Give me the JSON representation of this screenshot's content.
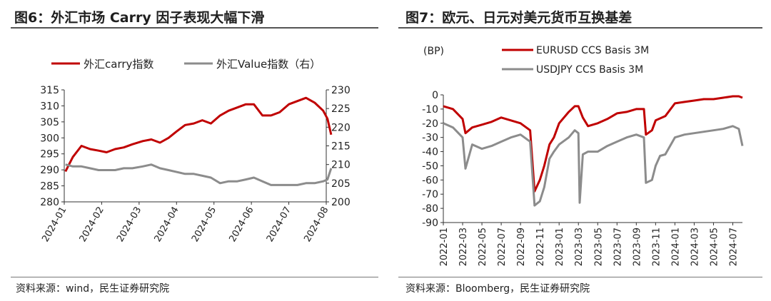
{
  "panels": [
    {
      "title": "图6：外汇市场 Carry 因子表现大幅下滑",
      "source": "资料来源：wind，民生证券研究院"
    },
    {
      "title": "图7：欧元、日元对美元货币互换基差",
      "source": "资料来源：Bloomberg，民生证券研究院"
    }
  ],
  "chart_data": [
    {
      "type": "line",
      "title": "图6：外汇市场 Carry 因子表现大幅下滑",
      "x_ticks": [
        "2024-01",
        "2024-02",
        "2024-03",
        "2024-04",
        "2024-05",
        "2024-06",
        "2024-07",
        "2024-08"
      ],
      "y_left": {
        "ylim": [
          280,
          315
        ],
        "ticks": [
          280,
          285,
          290,
          295,
          300,
          305,
          310,
          315
        ]
      },
      "y_right": {
        "ylim": [
          200,
          230
        ],
        "ticks": [
          200,
          205,
          210,
          215,
          220,
          225,
          230
        ]
      },
      "legend_position": "top",
      "grid": false,
      "series": [
        {
          "name": "外汇carry指数",
          "axis": "left",
          "color": "#c00000",
          "x": [
            "2024-01-02",
            "2024-01-08",
            "2024-01-15",
            "2024-01-22",
            "2024-01-29",
            "2024-02-05",
            "2024-02-12",
            "2024-02-19",
            "2024-02-26",
            "2024-03-04",
            "2024-03-11",
            "2024-03-18",
            "2024-03-25",
            "2024-04-01",
            "2024-04-08",
            "2024-04-15",
            "2024-04-22",
            "2024-04-29",
            "2024-05-06",
            "2024-05-13",
            "2024-05-20",
            "2024-05-27",
            "2024-06-03",
            "2024-06-10",
            "2024-06-17",
            "2024-06-24",
            "2024-07-01",
            "2024-07-08",
            "2024-07-15",
            "2024-07-22",
            "2024-07-29",
            "2024-08-02",
            "2024-08-05"
          ],
          "y": [
            289.5,
            294,
            297.5,
            296.5,
            296,
            295.5,
            296.5,
            297,
            298,
            299,
            299.5,
            298.5,
            300,
            302,
            304,
            304.5,
            305.5,
            304.5,
            307,
            308.5,
            309.5,
            310.5,
            310.5,
            307,
            307,
            308,
            310.5,
            311.5,
            312.5,
            311,
            308.5,
            306,
            301
          ]
        },
        {
          "name": "外汇Value指数（右）",
          "axis": "right",
          "color": "#8c8c8c",
          "x": [
            "2024-01-02",
            "2024-01-08",
            "2024-01-15",
            "2024-01-22",
            "2024-01-29",
            "2024-02-05",
            "2024-02-12",
            "2024-02-19",
            "2024-02-26",
            "2024-03-04",
            "2024-03-11",
            "2024-03-18",
            "2024-03-25",
            "2024-04-01",
            "2024-04-08",
            "2024-04-15",
            "2024-04-22",
            "2024-04-29",
            "2024-05-06",
            "2024-05-13",
            "2024-05-20",
            "2024-05-27",
            "2024-06-03",
            "2024-06-10",
            "2024-06-17",
            "2024-06-24",
            "2024-07-01",
            "2024-07-08",
            "2024-07-15",
            "2024-07-22",
            "2024-07-29",
            "2024-08-02",
            "2024-08-05"
          ],
          "y": [
            210,
            209.5,
            209.5,
            209,
            208.5,
            208.5,
            208.5,
            209,
            209,
            209.5,
            210,
            209,
            208.5,
            208,
            207.5,
            207.5,
            207,
            206.5,
            205,
            205.5,
            205.5,
            206,
            206.5,
            205.5,
            204.5,
            204.5,
            204.5,
            204.5,
            205,
            205,
            205.5,
            206,
            209
          ]
        }
      ]
    },
    {
      "type": "line",
      "title": "图7：欧元、日元对美元货币互换基差",
      "unit_label": "(BP)",
      "x_ticks": [
        "2022-01",
        "2022-03",
        "2022-05",
        "2022-07",
        "2022-09",
        "2022-11",
        "2023-01",
        "2023-03",
        "2023-05",
        "2023-07",
        "2023-09",
        "2023-11",
        "2024-01",
        "2024-03",
        "2024-05",
        "2024-07"
      ],
      "ylim": [
        -90,
        0
      ],
      "y_ticks": [
        0,
        -10,
        -20,
        -30,
        -40,
        -50,
        -60,
        -70,
        -80,
        -90
      ],
      "legend_position": "top",
      "grid": false,
      "series": [
        {
          "name": "EURUSD CCS Basis 3M",
          "color": "#c00000",
          "x": [
            "2022-01-01",
            "2022-02-01",
            "2022-03-01",
            "2022-03-10",
            "2022-04-01",
            "2022-05-01",
            "2022-06-01",
            "2022-07-01",
            "2022-08-01",
            "2022-09-01",
            "2022-10-01",
            "2022-10-15",
            "2022-11-01",
            "2022-11-15",
            "2022-12-01",
            "2022-12-15",
            "2023-01-01",
            "2023-02-01",
            "2023-02-20",
            "2023-03-01",
            "2023-03-15",
            "2023-04-01",
            "2023-05-01",
            "2023-06-01",
            "2023-07-01",
            "2023-08-01",
            "2023-09-01",
            "2023-09-25",
            "2023-10-01",
            "2023-10-20",
            "2023-11-01",
            "2023-12-01",
            "2024-01-01",
            "2024-02-01",
            "2024-03-01",
            "2024-04-01",
            "2024-05-01",
            "2024-06-01",
            "2024-07-01",
            "2024-07-20",
            "2024-08-01"
          ],
          "y": [
            -8,
            -10,
            -17,
            -27,
            -23,
            -21,
            -19,
            -16,
            -18,
            -20,
            -25,
            -68,
            -60,
            -50,
            -35,
            -30,
            -20,
            -12,
            -8,
            -8,
            -16,
            -22,
            -20,
            -17,
            -13,
            -12,
            -10,
            -10,
            -28,
            -25,
            -18,
            -15,
            -6,
            -5,
            -4,
            -3,
            -3,
            -2,
            -1,
            -1,
            -2
          ]
        },
        {
          "name": "USDJPY CCS Basis 3M",
          "color": "#8c8c8c",
          "x": [
            "2022-01-01",
            "2022-02-01",
            "2022-03-01",
            "2022-03-10",
            "2022-04-01",
            "2022-05-01",
            "2022-06-01",
            "2022-07-01",
            "2022-08-01",
            "2022-09-01",
            "2022-10-01",
            "2022-10-15",
            "2022-11-01",
            "2022-11-15",
            "2022-12-01",
            "2022-12-15",
            "2023-01-01",
            "2023-02-01",
            "2023-02-20",
            "2023-03-01",
            "2023-03-05",
            "2023-03-15",
            "2023-04-01",
            "2023-05-01",
            "2023-06-01",
            "2023-07-01",
            "2023-08-01",
            "2023-09-01",
            "2023-09-25",
            "2023-10-01",
            "2023-10-20",
            "2023-11-01",
            "2023-11-15",
            "2023-12-01",
            "2024-01-01",
            "2024-02-01",
            "2024-03-01",
            "2024-04-01",
            "2024-05-01",
            "2024-06-01",
            "2024-07-01",
            "2024-07-20",
            "2024-08-01"
          ],
          "y": [
            -20,
            -23,
            -30,
            -52,
            -35,
            -38,
            -36,
            -33,
            -30,
            -28,
            -33,
            -78,
            -75,
            -65,
            -45,
            -40,
            -35,
            -30,
            -25,
            -27,
            -76,
            -42,
            -40,
            -40,
            -36,
            -33,
            -30,
            -28,
            -30,
            -62,
            -60,
            -50,
            -43,
            -42,
            -30,
            -28,
            -27,
            -26,
            -25,
            -24,
            -22,
            -24,
            -36
          ]
        }
      ]
    }
  ]
}
